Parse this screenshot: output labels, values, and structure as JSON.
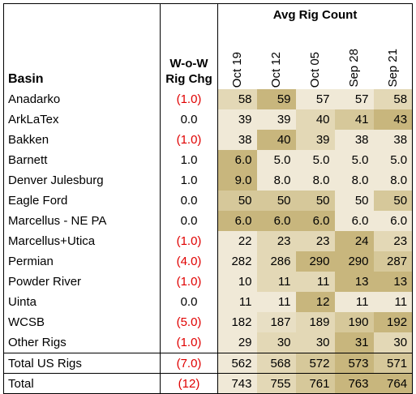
{
  "header": {
    "group_label": "Avg Rig Count",
    "basin_label": "Basin",
    "wow_label_line1": "W-o-W",
    "wow_label_line2": "Rig Chg",
    "months": [
      "Oct 19",
      "Oct 12",
      "Oct 05",
      "Sep 28",
      "Sep 21"
    ]
  },
  "rows": [
    {
      "basin": "Anadarko",
      "wow": "(1.0)",
      "values": [
        "58",
        "59",
        "57",
        "57",
        "58"
      ],
      "shade": [
        "#e3d8b6",
        "#c8b67d",
        "#f0e9d7",
        "#f0e9d7",
        "#e3d8b6"
      ]
    },
    {
      "basin": "ArkLaTex",
      "wow": "0.0",
      "values": [
        "39",
        "39",
        "40",
        "41",
        "43"
      ],
      "shade": [
        "#f0e9d7",
        "#f0e9d7",
        "#e3d8b6",
        "#d6c89a",
        "#c8b67d"
      ]
    },
    {
      "basin": "Bakken",
      "wow": "(1.0)",
      "values": [
        "38",
        "40",
        "39",
        "38",
        "38"
      ],
      "shade": [
        "#f0e9d7",
        "#c8b67d",
        "#e3d8b6",
        "#f0e9d7",
        "#f0e9d7"
      ]
    },
    {
      "basin": "Barnett",
      "wow": "1.0",
      "values": [
        "6.0",
        "5.0",
        "5.0",
        "5.0",
        "5.0"
      ],
      "shade": [
        "#c8b67d",
        "#f0e9d7",
        "#f0e9d7",
        "#f0e9d7",
        "#f0e9d7"
      ]
    },
    {
      "basin": "Denver Julesburg",
      "wow": "1.0",
      "values": [
        "9.0",
        "8.0",
        "8.0",
        "8.0",
        "8.0"
      ],
      "shade": [
        "#c8b67d",
        "#f0e9d7",
        "#f0e9d7",
        "#f0e9d7",
        "#f0e9d7"
      ]
    },
    {
      "basin": "Eagle Ford",
      "wow": "0.0",
      "values": [
        "50",
        "50",
        "50",
        "50",
        "50"
      ],
      "shade": [
        "#d6c89a",
        "#d6c89a",
        "#d6c89a",
        "#f0e9d7",
        "#d6c89a"
      ]
    },
    {
      "basin": "Marcellus - NE PA",
      "wow": "0.0",
      "values": [
        "6.0",
        "6.0",
        "6.0",
        "6.0",
        "6.0"
      ],
      "shade": [
        "#c8b67d",
        "#c8b67d",
        "#c8b67d",
        "#f0e9d7",
        "#f0e9d7"
      ]
    },
    {
      "basin": "Marcellus+Utica",
      "wow": "(1.0)",
      "values": [
        "22",
        "23",
        "23",
        "24",
        "23"
      ],
      "shade": [
        "#f0e9d7",
        "#e3d8b6",
        "#e3d8b6",
        "#c8b67d",
        "#e3d8b6"
      ]
    },
    {
      "basin": "Permian",
      "wow": "(4.0)",
      "values": [
        "282",
        "286",
        "290",
        "290",
        "287"
      ],
      "shade": [
        "#f0e9d7",
        "#e3d8b6",
        "#c8b67d",
        "#c8b67d",
        "#d6c89a"
      ]
    },
    {
      "basin": "Powder River",
      "wow": "(1.0)",
      "values": [
        "10",
        "11",
        "11",
        "13",
        "13"
      ],
      "shade": [
        "#f0e9d7",
        "#e3d8b6",
        "#e3d8b6",
        "#c8b67d",
        "#c8b67d"
      ]
    },
    {
      "basin": "Uinta",
      "wow": "0.0",
      "values": [
        "11",
        "11",
        "12",
        "11",
        "11"
      ],
      "shade": [
        "#f0e9d7",
        "#f0e9d7",
        "#c8b67d",
        "#f0e9d7",
        "#f0e9d7"
      ]
    },
    {
      "basin": "WCSB",
      "wow": "(5.0)",
      "values": [
        "182",
        "187",
        "189",
        "190",
        "192"
      ],
      "shade": [
        "#f0e9d7",
        "#e8dfc4",
        "#e3d8b6",
        "#d6c89a",
        "#c8b67d"
      ]
    },
    {
      "basin": "Other Rigs",
      "wow": "(1.0)",
      "values": [
        "29",
        "30",
        "30",
        "31",
        "30"
      ],
      "shade": [
        "#f0e9d7",
        "#e3d8b6",
        "#e3d8b6",
        "#c8b67d",
        "#e3d8b6"
      ]
    }
  ],
  "total_us": {
    "basin": "Total US Rigs",
    "wow": "(7.0)",
    "values": [
      "562",
      "568",
      "572",
      "573",
      "571"
    ],
    "shade": [
      "#f0e9d7",
      "#e3d8b6",
      "#d6c89a",
      "#c8b67d",
      "#d6c89a"
    ]
  },
  "total": {
    "basin": "Total",
    "wow": "(12)",
    "values": [
      "743",
      "755",
      "761",
      "763",
      "764"
    ],
    "shade": [
      "#f0e9d7",
      "#e3d8b6",
      "#d6c89a",
      "#c8b67d",
      "#c8b67d"
    ]
  },
  "colors": {
    "negative": "#e00000",
    "border": "#000000"
  }
}
